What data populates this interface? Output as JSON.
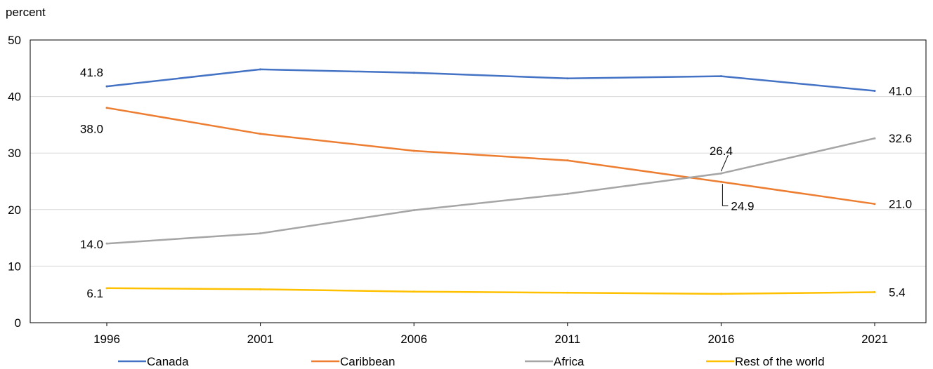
{
  "chart_data": {
    "type": "line",
    "title": "",
    "ylabel": "percent",
    "xlabel": "",
    "x": [
      "1996",
      "2001",
      "2006",
      "2011",
      "2016",
      "2021"
    ],
    "ylim": [
      0,
      50
    ],
    "yticks": [
      0,
      10,
      20,
      30,
      40,
      50
    ],
    "grid": true,
    "legend_position": "bottom",
    "series": [
      {
        "name": "Canada",
        "color": "#4472C4",
        "values": [
          41.8,
          44.8,
          44.2,
          43.2,
          43.6,
          41.0
        ]
      },
      {
        "name": "Caribbean",
        "color": "#ED7D31",
        "values": [
          38.0,
          33.4,
          30.4,
          28.7,
          24.9,
          21.0
        ]
      },
      {
        "name": "Africa",
        "color": "#A5A5A5",
        "values": [
          14.0,
          15.8,
          19.9,
          22.8,
          26.4,
          32.6
        ]
      },
      {
        "name": "Rest of the world",
        "color": "#FFC000",
        "values": [
          6.1,
          5.9,
          5.5,
          5.3,
          5.1,
          5.4
        ]
      }
    ],
    "data_labels": [
      {
        "series": "Canada",
        "x": "1996",
        "text": "41.8"
      },
      {
        "series": "Canada",
        "x": "2021",
        "text": "41.0"
      },
      {
        "series": "Caribbean",
        "x": "1996",
        "text": "38.0"
      },
      {
        "series": "Caribbean",
        "x": "2016",
        "text": "24.9"
      },
      {
        "series": "Caribbean",
        "x": "2021",
        "text": "21.0"
      },
      {
        "series": "Africa",
        "x": "1996",
        "text": "14.0"
      },
      {
        "series": "Africa",
        "x": "2016",
        "text": "26.4"
      },
      {
        "series": "Africa",
        "x": "2021",
        "text": "32.6"
      },
      {
        "series": "Rest of the world",
        "x": "1996",
        "text": "6.1"
      },
      {
        "series": "Rest of the world",
        "x": "2021",
        "text": "5.4"
      }
    ]
  }
}
